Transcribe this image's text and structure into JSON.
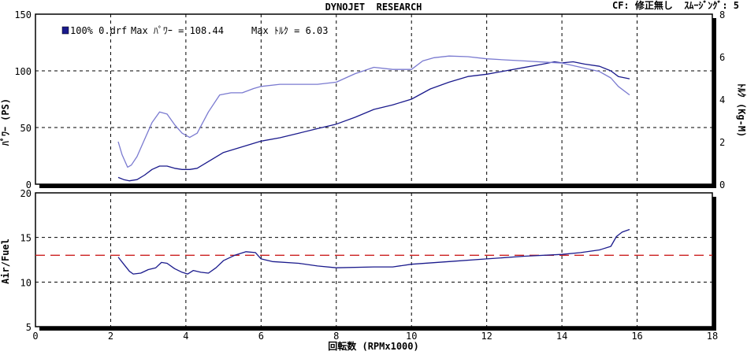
{
  "header": {
    "title": "DYNOJET  RESEARCH",
    "info": "CF: 修正無し  ｽﾑｰｼﾞﾝｸﾞ: 5"
  },
  "legend": {
    "run_label": "100% 0.drf",
    "max_power": "Max ﾊﾟﾜｰ = 108.44",
    "max_torque": "Max ﾄﾙｸ = 6.03"
  },
  "chart_data": [
    {
      "type": "line",
      "ylabel": "ﾊﾟﾜｰ (PS)",
      "y2label": "ﾄﾙｸ (Kg-M)",
      "xlim": [
        0,
        18
      ],
      "ylim": [
        0,
        150
      ],
      "y2lim": [
        0,
        8
      ],
      "x_ticks": [
        0,
        2,
        4,
        6,
        8,
        10,
        12,
        14,
        16,
        18
      ],
      "y_ticks": [
        "0",
        "50",
        "100",
        "150"
      ],
      "y2_ticks": [
        "0",
        "2",
        "4",
        "6",
        "8"
      ],
      "grid": true,
      "series": [
        {
          "role": "power",
          "axis": "left",
          "color": "#1a1a8c",
          "x": [
            2.2,
            2.35,
            2.5,
            2.7,
            2.9,
            3.1,
            3.3,
            3.5,
            3.7,
            3.9,
            4.1,
            4.3,
            4.6,
            5.0,
            5.5,
            6.0,
            6.5,
            7.0,
            7.5,
            8.0,
            8.5,
            9.0,
            9.5,
            10.0,
            10.5,
            11.0,
            11.5,
            12.0,
            12.5,
            13.0,
            13.5,
            13.8,
            14.0,
            14.3,
            14.6,
            15.0,
            15.3,
            15.5,
            15.8
          ],
          "y": [
            6,
            4,
            3,
            4,
            8,
            13,
            16,
            16,
            14,
            13,
            13,
            14,
            20,
            28,
            33,
            38,
            41,
            45,
            49,
            53,
            59,
            66,
            70,
            75,
            84,
            90,
            95,
            97,
            100,
            103,
            106,
            108,
            107,
            108,
            106,
            104,
            100,
            95,
            93
          ]
        },
        {
          "role": "torque",
          "axis": "right",
          "color": "#7a7ad0",
          "x": [
            2.2,
            2.3,
            2.45,
            2.55,
            2.7,
            2.9,
            3.1,
            3.3,
            3.5,
            3.7,
            3.9,
            4.1,
            4.3,
            4.6,
            4.9,
            5.2,
            5.5,
            5.8,
            6.0,
            6.5,
            7.0,
            7.5,
            8.0,
            8.5,
            9.0,
            9.5,
            10.0,
            10.3,
            10.6,
            11.0,
            11.5,
            12.0,
            12.5,
            13.0,
            13.5,
            14.0,
            14.5,
            15.0,
            15.3,
            15.5,
            15.8
          ],
          "y": [
            2.0,
            1.4,
            0.8,
            0.9,
            1.3,
            2.1,
            2.9,
            3.4,
            3.3,
            2.8,
            2.4,
            2.2,
            2.4,
            3.4,
            4.2,
            4.3,
            4.3,
            4.5,
            4.6,
            4.7,
            4.7,
            4.7,
            4.8,
            5.2,
            5.5,
            5.4,
            5.4,
            5.8,
            5.95,
            6.03,
            6.0,
            5.9,
            5.85,
            5.8,
            5.75,
            5.7,
            5.5,
            5.3,
            5.0,
            4.6,
            4.2
          ]
        }
      ]
    },
    {
      "type": "line",
      "ylabel": "Air/Fuel",
      "xlabel": "回転数 (RPMx1000)",
      "xlim": [
        0,
        18
      ],
      "ylim": [
        5,
        20
      ],
      "x_ticks": [
        "0",
        "2",
        "4",
        "6",
        "8",
        "10",
        "12",
        "14",
        "16",
        "18"
      ],
      "y_ticks": [
        "5",
        "10",
        "15",
        "20"
      ],
      "grid": true,
      "reference_line": {
        "y": 13.0,
        "color": "#cc2020"
      },
      "series": [
        {
          "role": "afr",
          "color": "#1a1a8c",
          "x": [
            2.2,
            2.35,
            2.5,
            2.6,
            2.8,
            3.0,
            3.2,
            3.35,
            3.5,
            3.7,
            3.9,
            4.05,
            4.2,
            4.4,
            4.6,
            4.8,
            5.0,
            5.3,
            5.6,
            5.85,
            6.0,
            6.3,
            7.0,
            7.5,
            8.0,
            9.0,
            9.5,
            10.0,
            11.0,
            12.0,
            13.0,
            14.0,
            14.5,
            15.0,
            15.3,
            15.45,
            15.6,
            15.8
          ],
          "y": [
            12.8,
            12.0,
            11.2,
            10.9,
            11.0,
            11.4,
            11.6,
            12.2,
            12.1,
            11.5,
            11.1,
            10.9,
            11.3,
            11.1,
            11.0,
            11.6,
            12.4,
            13.0,
            13.4,
            13.3,
            12.6,
            12.3,
            12.1,
            11.8,
            11.6,
            11.7,
            11.7,
            12.0,
            12.3,
            12.6,
            12.9,
            13.1,
            13.3,
            13.6,
            14.0,
            15.1,
            15.6,
            15.9
          ]
        }
      ]
    }
  ]
}
